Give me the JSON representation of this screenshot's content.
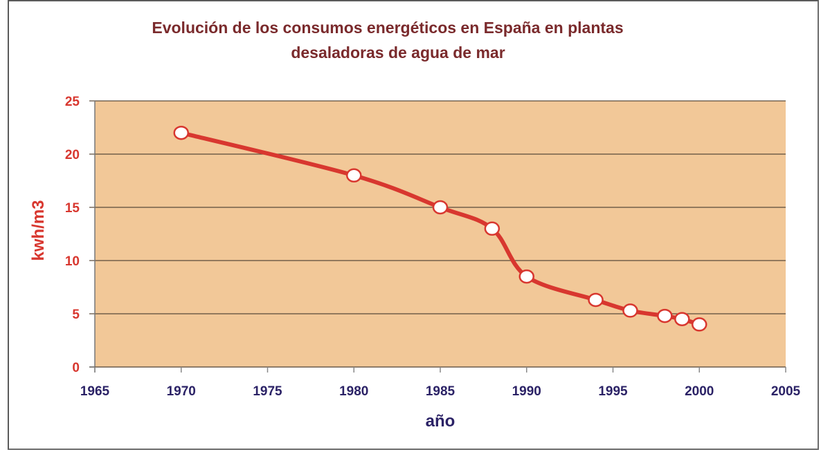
{
  "chart_data": {
    "type": "line",
    "title": "Evolución de los consumos energéticos en España en plantas desaladoras de agua de mar",
    "title_lines": [
      "Evolución de los consumos energéticos en España en plantas",
      "desaladoras de agua de mar"
    ],
    "xlabel": "año",
    "ylabel": "kwh/m3",
    "xlim": [
      1965,
      2005
    ],
    "ylim": [
      0,
      25
    ],
    "xticks": [
      1965,
      1970,
      1975,
      1980,
      1985,
      1990,
      1995,
      2000,
      2005
    ],
    "yticks": [
      0,
      5,
      10,
      15,
      20,
      25
    ],
    "grid": "horizontal",
    "legend": "none",
    "series": [
      {
        "name": "kwh/m3",
        "x": [
          1970,
          1980,
          1985,
          1988,
          1990,
          1994,
          1996,
          1998,
          1999,
          2000
        ],
        "y": [
          22,
          18,
          15,
          13,
          8.5,
          6.3,
          5.3,
          4.8,
          4.5,
          4.0
        ],
        "smooth": true,
        "color": "#d8372f",
        "marker_fill": "#ffffff"
      }
    ]
  },
  "colors": {
    "plot_background": "#f2c898",
    "title": "#7a2a2c",
    "y_axis_text": "#d8372f",
    "x_axis_text": "#2b2266",
    "gridline": "#5a4a3a"
  }
}
